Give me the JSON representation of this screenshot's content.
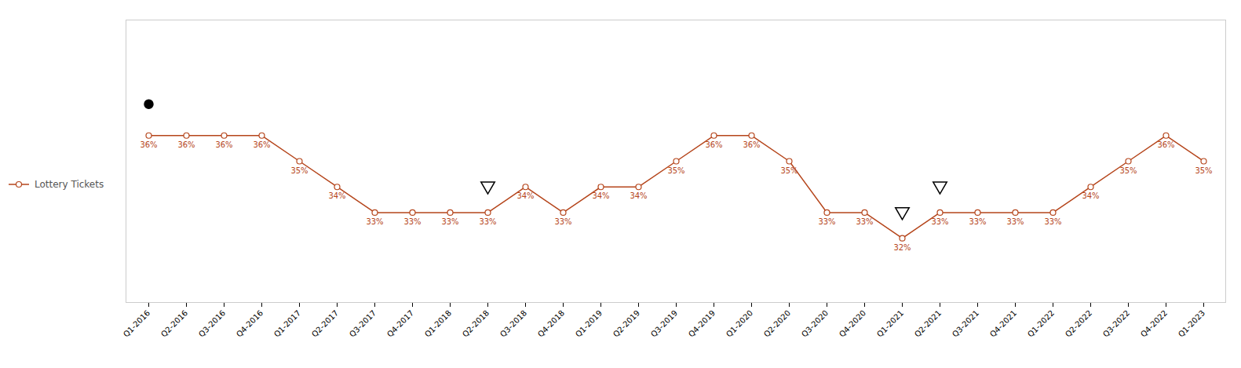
{
  "chart_data": {
    "type": "line",
    "categories": [
      "Q1-2016",
      "Q2-2016",
      "Q3-2016",
      "Q4-2016",
      "Q1-2017",
      "Q2-2017",
      "Q3-2017",
      "Q4-2017",
      "Q1-2018",
      "Q2-2018",
      "Q3-2018",
      "Q4-2018",
      "Q1-2019",
      "Q2-2019",
      "Q3-2019",
      "Q4-2019",
      "Q1-2020",
      "Q2-2020",
      "Q3-2020",
      "Q4-2020",
      "Q1-2021",
      "Q2-2021",
      "Q3-2021",
      "Q4-2021",
      "Q1-2022",
      "Q2-2022",
      "Q3-2022",
      "Q4-2022",
      "Q1-2023"
    ],
    "series": [
      {
        "name": "Lottery Tickets",
        "color": "#B5451B",
        "marker": "circle",
        "values": [
          36,
          36,
          36,
          36,
          35,
          34,
          33,
          33,
          33,
          33,
          34,
          33,
          34,
          34,
          35,
          36,
          36,
          35,
          33,
          33,
          32,
          33,
          33,
          33,
          33,
          34,
          35,
          36,
          35
        ],
        "value_labels": [
          "36%",
          "36%",
          "36%",
          "36%",
          "35%",
          "34%",
          "33%",
          "33%",
          "33%",
          "33%",
          "34%",
          "33%",
          "34%",
          "34%",
          "35%",
          "36%",
          "36%",
          "35%",
          "33%",
          "33%",
          "32%",
          "33%",
          "33%",
          "33%",
          "33%",
          "34%",
          "35%",
          "36%",
          "35%"
        ]
      }
    ],
    "annotations": [
      {
        "category": "Q1-2016",
        "marker": "circle",
        "color": "black"
      },
      {
        "category": "Q2-2018",
        "marker": "triangle_down",
        "color": "black"
      },
      {
        "category": "Q1-2021",
        "marker": "triangle_down",
        "color": "black"
      },
      {
        "category": "Q2-2021",
        "marker": "triangle_down",
        "color": "black"
      }
    ],
    "ylim": [
      29.5,
      40.5
    ],
    "data_labels": true,
    "tick_labels": "x",
    "legend": "left",
    "grid": false
  }
}
